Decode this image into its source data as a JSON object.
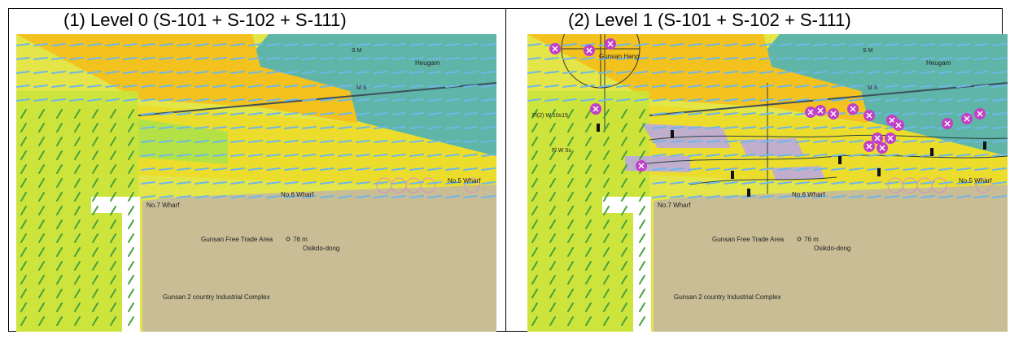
{
  "panels": [
    {
      "caption": "(1)  Level 0 (S-101 + S-102 + S-111)",
      "place_labels": {
        "wharf7": "No.7 Wharf",
        "wharf6": "No.6 Wharf",
        "wharf5": "No.5 Wharf",
        "trade_area": "Gunsan Free Trade Area",
        "height": "76 m",
        "osikdo": "Osikdo-dong",
        "industrial": "Gunsan 2 country Industrial Complex",
        "heugam": "Heugam",
        "sm": "S M",
        "ms": "M S"
      }
    },
    {
      "caption": "(2)  Level 1 (S-101 + S-102 + S-111)",
      "place_labels": {
        "wharf7": "No.7 Wharf",
        "wharf6": "No.6 Wharf",
        "wharf5": "No.5 Wharf",
        "trade_area": "Gunsan Free Trade Area",
        "height": "76 m",
        "osikdo": "Osikdo-dong",
        "industrial": "Gunsan 2 country Industrial Complex",
        "heugam": "Heugam",
        "gunsan_hang": "Gunsan Hang",
        "light1": "Fl(2) W 10s15",
        "light2": "Fl W 5s",
        "sm": "S M",
        "ms": "M S"
      }
    }
  ],
  "colors": {
    "land": "#c8bd95",
    "deep_water": "#5fb5a8",
    "current_high": "#f5c21b",
    "current_mid": "#e6e83a",
    "current_low": "#a8e64a",
    "arrow": "#6fb7e8",
    "magenta": "#c23fc7"
  },
  "icons": [
    "current-arrow-icon",
    "danger-buoy-icon",
    "lighthouse-icon"
  ]
}
